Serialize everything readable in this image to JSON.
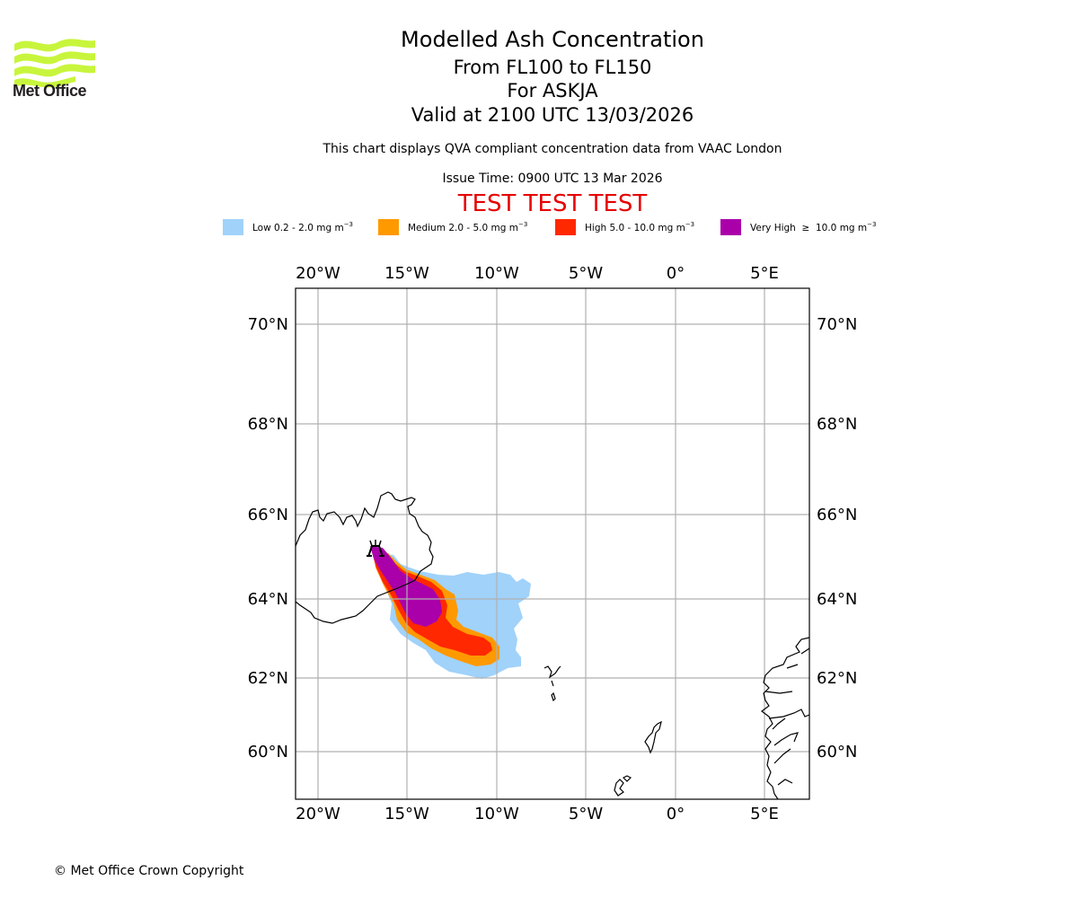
{
  "logo": {
    "name": "Met Office",
    "color": "#c8f53c"
  },
  "header": {
    "title": "Modelled Ash Concentration",
    "levels": "From FL100 to FL150",
    "volcano": "For ASKJA",
    "valid": "Valid at 2100 UTC 13/03/2026",
    "note": "This chart displays QVA compliant concentration data from VAAC London",
    "issue": "Issue Time: 0900 UTC 13 Mar 2026",
    "test_banner": "TEST TEST TEST",
    "test_color": "#e60000"
  },
  "legend": [
    {
      "label": "Low 0.2 - 2.0 mg m",
      "unit_exp": "−3",
      "color": "#a0d2fa"
    },
    {
      "label": "Medium 2.0 - 5.0 mg m",
      "unit_exp": "−3",
      "color": "#ff9900"
    },
    {
      "label": "High 5.0 - 10.0 mg m",
      "unit_exp": "−3",
      "color": "#ff2800"
    },
    {
      "label": "Very High  ≥  10.0 mg m",
      "unit_exp": "−3",
      "color": "#aa00aa"
    }
  ],
  "chart_data": {
    "type": "map",
    "projection": "polar stereographic",
    "extent": {
      "lon": [
        -21.2,
        7.5
      ],
      "lat": [
        58.9,
        70.8
      ]
    },
    "grid": true,
    "lon_ticks": [
      "20°W",
      "15°W",
      "10°W",
      "5°W",
      "0°",
      "5°E"
    ],
    "lon_values": [
      -20,
      -15,
      -10,
      -5,
      0,
      5
    ],
    "lat_ticks": [
      "70°N",
      "68°N",
      "66°N",
      "64°N",
      "62°N",
      "60°N"
    ],
    "lat_values": [
      70,
      68,
      66,
      64,
      62,
      60
    ],
    "volcano": {
      "name": "ASKJA",
      "lon": -16.75,
      "lat": 65.05
    },
    "ash_levels": [
      "Low",
      "Medium",
      "High",
      "Very High"
    ]
  },
  "footer": {
    "copyright": "© Met Office Crown Copyright"
  }
}
